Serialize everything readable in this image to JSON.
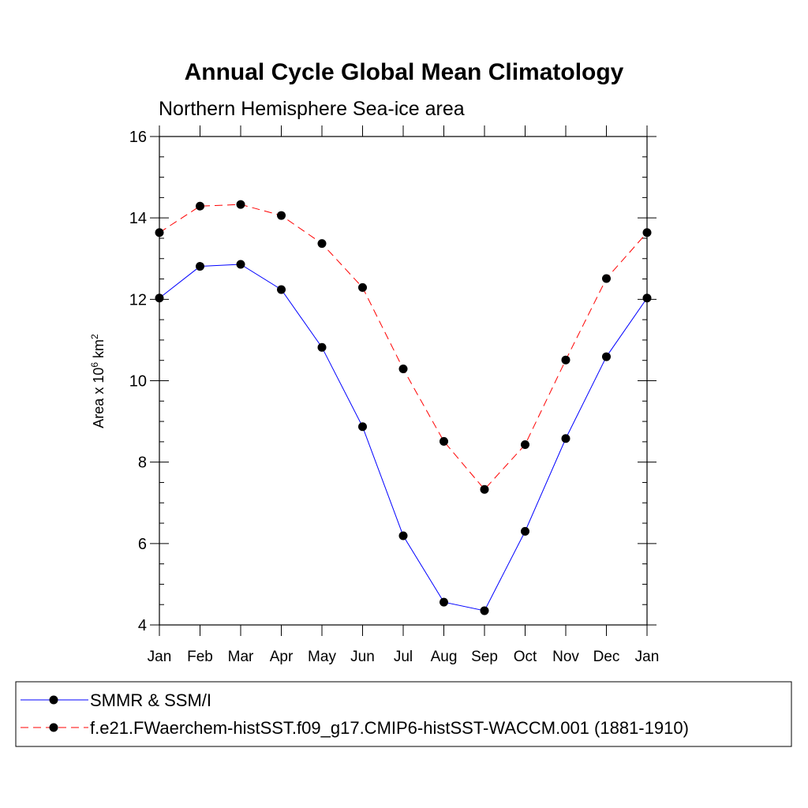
{
  "chart_data": {
    "type": "line",
    "title": "Annual Cycle Global Mean Climatology",
    "subtitle": "Northern Hemisphere Sea-ice area",
    "ylabel": {
      "prefix": "Area x 10",
      "exp": "6",
      "unit": " km",
      "unit_exp": "2"
    },
    "xlabel": "",
    "categories": [
      "Jan",
      "Feb",
      "Mar",
      "Apr",
      "May",
      "Jun",
      "Jul",
      "Aug",
      "Sep",
      "Oct",
      "Nov",
      "Dec",
      "Jan"
    ],
    "ylim": [
      4,
      16
    ],
    "yticks": [
      4,
      6,
      8,
      10,
      12,
      14,
      16
    ],
    "grid": false,
    "legend_position": "bottom",
    "series": [
      {
        "name": "SMMR & SSM/I",
        "color": "#0000ff",
        "dash": "solid",
        "marker": "circle",
        "values": [
          12.03,
          12.81,
          12.86,
          12.24,
          10.82,
          8.87,
          6.19,
          4.56,
          4.35,
          6.3,
          8.58,
          10.59,
          12.03
        ]
      },
      {
        "name": "f.e21.FWaerchem-histSST.f09_g17.CMIP6-histSST-WACCM.001 (1881-1910)",
        "color": "#ff0000",
        "dash": "dashed",
        "marker": "circle",
        "values": [
          13.64,
          14.29,
          14.33,
          14.06,
          13.37,
          12.29,
          10.29,
          8.51,
          7.33,
          8.43,
          10.51,
          12.51,
          13.64
        ]
      }
    ]
  }
}
